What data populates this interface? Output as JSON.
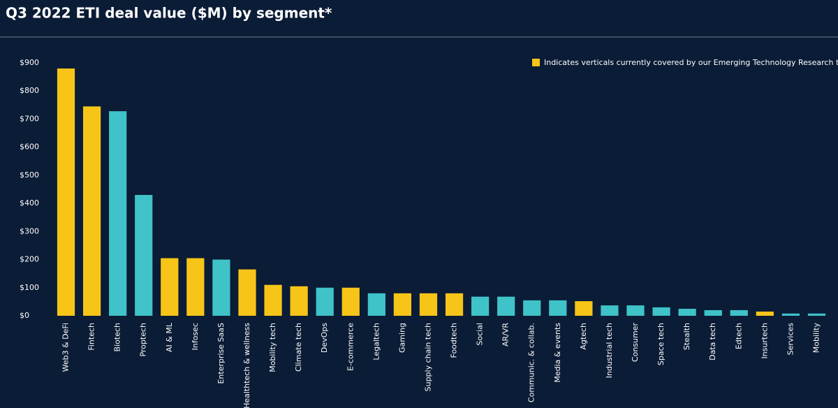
{
  "chart_data": {
    "type": "bar",
    "title": "Q3 2022 ETI deal value ($M) by segment*",
    "categories": [
      "Web3 & DeFi",
      "Fintech",
      "Biotech",
      "Proptech",
      "AI & ML",
      "Infosec",
      "Enterprise SaaS",
      "Healthtech & wellness",
      "Mobility tech",
      "Climate tech",
      "DevOps",
      "E-commerce",
      "Legaltech",
      "Gaming",
      "Supply chain tech",
      "Foodtech",
      "Social",
      "AR/VR",
      "Communic. & collab.",
      "Media & events",
      "Agtech",
      "Industrial tech",
      "Consumer",
      "Space tech",
      "Stealth",
      "Data tech",
      "Edtech",
      "Insurtech",
      "Services",
      "Mobility"
    ],
    "values": [
      880,
      745,
      728,
      430,
      205,
      205,
      200,
      165,
      110,
      105,
      100,
      100,
      80,
      80,
      80,
      80,
      68,
      68,
      55,
      55,
      52,
      37,
      37,
      30,
      25,
      20,
      20,
      15,
      8,
      8
    ],
    "colors": [
      "#f6c518",
      "#f6c518",
      "#3fc3c9",
      "#3fc3c9",
      "#f6c518",
      "#f6c518",
      "#3fc3c9",
      "#f6c518",
      "#f6c518",
      "#f6c518",
      "#3fc3c9",
      "#f6c518",
      "#3fc3c9",
      "#f6c518",
      "#f6c518",
      "#f6c518",
      "#3fc3c9",
      "#3fc3c9",
      "#3fc3c9",
      "#3fc3c9",
      "#f6c518",
      "#3fc3c9",
      "#3fc3c9",
      "#3fc3c9",
      "#3fc3c9",
      "#3fc3c9",
      "#3fc3c9",
      "#f6c518",
      "#3fc3c9",
      "#3fc3c9"
    ],
    "legend": {
      "label": "Indicates verticals currently covered by our Emerging Technology Research team",
      "color": "#f6c518",
      "position": "top-right"
    },
    "ylim": [
      0,
      900
    ],
    "yticks": [
      {
        "value": 0,
        "label": "$0"
      },
      {
        "value": 100,
        "label": "$100"
      },
      {
        "value": 200,
        "label": "$200"
      },
      {
        "value": 300,
        "label": "$300"
      },
      {
        "value": 400,
        "label": "$400"
      },
      {
        "value": 500,
        "label": "$500"
      },
      {
        "value": 600,
        "label": "$600"
      },
      {
        "value": 700,
        "label": "$700"
      },
      {
        "value": 800,
        "label": "$800"
      },
      {
        "value": 900,
        "label": "$900"
      }
    ],
    "grid": false
  }
}
